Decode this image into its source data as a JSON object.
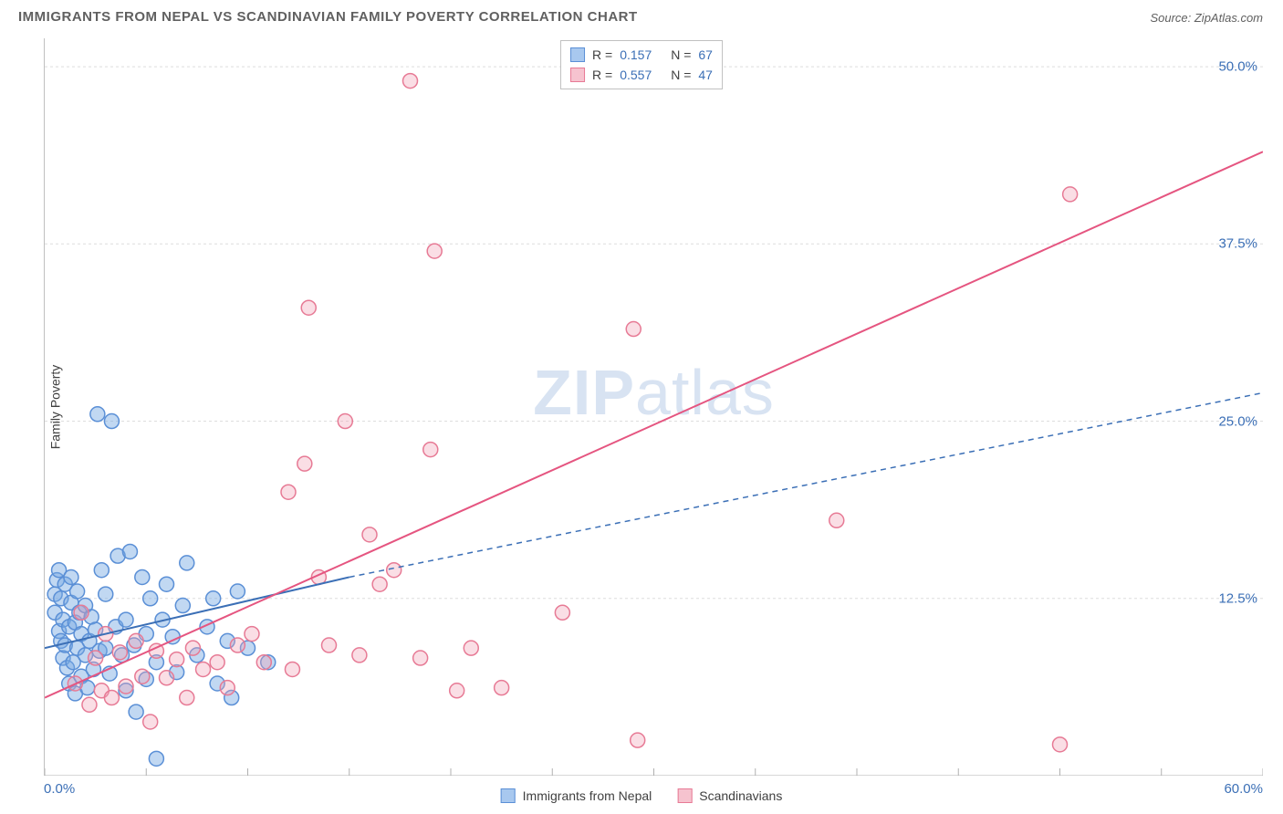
{
  "title": "IMMIGRANTS FROM NEPAL VS SCANDINAVIAN FAMILY POVERTY CORRELATION CHART",
  "source": "Source: ZipAtlas.com",
  "ylabel": "Family Poverty",
  "watermark_a": "ZIP",
  "watermark_b": "atlas",
  "chart": {
    "type": "scatter",
    "background_color": "#ffffff",
    "grid_color": "#dddddd",
    "axis_color": "#b0b0b0",
    "xlim": [
      0,
      60
    ],
    "ylim": [
      0,
      52
    ],
    "xtick_step": 5,
    "yticks": [
      12.5,
      25.0,
      37.5,
      50.0
    ],
    "ytick_labels": [
      "12.5%",
      "25.0%",
      "37.5%",
      "50.0%"
    ],
    "x_min_label": "0.0%",
    "x_max_label": "60.0%",
    "marker_radius": 8,
    "marker_stroke_width": 1.5,
    "label_fontsize": 14,
    "tick_fontsize": 15
  },
  "legend_top": {
    "rows": [
      {
        "swatch_fill": "#a8c8ef",
        "swatch_stroke": "#5a8fd6",
        "r_label": "R =",
        "r_value": "0.157",
        "n_label": "N =",
        "n_value": "67"
      },
      {
        "swatch_fill": "#f6c3cf",
        "swatch_stroke": "#e77a95",
        "r_label": "R =",
        "r_value": "0.557",
        "n_label": "N =",
        "n_value": "47"
      }
    ]
  },
  "legend_bottom": {
    "items": [
      {
        "swatch_fill": "#a8c8ef",
        "swatch_stroke": "#5a8fd6",
        "label": "Immigrants from Nepal"
      },
      {
        "swatch_fill": "#f6c3cf",
        "swatch_stroke": "#e77a95",
        "label": "Scandinavians"
      }
    ]
  },
  "series": [
    {
      "name": "blue",
      "fill": "rgba(118,168,226,0.45)",
      "stroke": "#5a8fd6",
      "trend": {
        "x1": 0,
        "y1": 9.0,
        "x2": 15,
        "y2": 14.0,
        "dash_x1": 15,
        "dash_y1": 14.0,
        "dash_x2": 60,
        "dash_y2": 27.0,
        "color": "#3b6fb6",
        "width": 2
      },
      "points": [
        [
          0.5,
          11.5
        ],
        [
          0.5,
          12.8
        ],
        [
          0.6,
          13.8
        ],
        [
          0.7,
          14.5
        ],
        [
          0.7,
          10.2
        ],
        [
          0.8,
          9.5
        ],
        [
          0.8,
          12.5
        ],
        [
          0.9,
          8.3
        ],
        [
          0.9,
          11.0
        ],
        [
          1.0,
          13.5
        ],
        [
          1.0,
          9.2
        ],
        [
          1.1,
          7.6
        ],
        [
          1.2,
          10.5
        ],
        [
          1.2,
          6.5
        ],
        [
          1.3,
          12.2
        ],
        [
          1.3,
          14.0
        ],
        [
          1.4,
          8.0
        ],
        [
          1.5,
          10.8
        ],
        [
          1.5,
          5.8
        ],
        [
          1.6,
          13.0
        ],
        [
          1.6,
          9.0
        ],
        [
          1.7,
          11.5
        ],
        [
          1.8,
          7.0
        ],
        [
          1.8,
          10.0
        ],
        [
          2.0,
          8.5
        ],
        [
          2.0,
          12.0
        ],
        [
          2.1,
          6.2
        ],
        [
          2.2,
          9.5
        ],
        [
          2.3,
          11.2
        ],
        [
          2.4,
          7.5
        ],
        [
          2.5,
          10.3
        ],
        [
          2.6,
          25.5
        ],
        [
          2.7,
          8.8
        ],
        [
          2.8,
          14.5
        ],
        [
          3.0,
          9.0
        ],
        [
          3.0,
          12.8
        ],
        [
          3.2,
          7.2
        ],
        [
          3.3,
          25.0
        ],
        [
          3.5,
          10.5
        ],
        [
          3.6,
          15.5
        ],
        [
          3.8,
          8.5
        ],
        [
          4.0,
          11.0
        ],
        [
          4.0,
          6.0
        ],
        [
          4.2,
          15.8
        ],
        [
          4.4,
          9.2
        ],
        [
          4.5,
          4.5
        ],
        [
          4.8,
          14.0
        ],
        [
          5.0,
          10.0
        ],
        [
          5.0,
          6.8
        ],
        [
          5.2,
          12.5
        ],
        [
          5.5,
          8.0
        ],
        [
          5.5,
          1.2
        ],
        [
          5.8,
          11.0
        ],
        [
          6.0,
          13.5
        ],
        [
          6.3,
          9.8
        ],
        [
          6.5,
          7.3
        ],
        [
          6.8,
          12.0
        ],
        [
          7.0,
          15.0
        ],
        [
          7.5,
          8.5
        ],
        [
          8.0,
          10.5
        ],
        [
          8.3,
          12.5
        ],
        [
          8.5,
          6.5
        ],
        [
          9.0,
          9.5
        ],
        [
          9.2,
          5.5
        ],
        [
          9.5,
          13.0
        ],
        [
          10.0,
          9.0
        ],
        [
          11.0,
          8.0
        ]
      ]
    },
    {
      "name": "pink",
      "fill": "rgba(240,160,180,0.35)",
      "stroke": "#e77a95",
      "trend": {
        "x1": 0,
        "y1": 5.5,
        "x2": 60,
        "y2": 44.0,
        "color": "#e55580",
        "width": 2
      },
      "points": [
        [
          1.5,
          6.5
        ],
        [
          1.8,
          11.5
        ],
        [
          2.2,
          5.0
        ],
        [
          2.5,
          8.3
        ],
        [
          2.8,
          6.0
        ],
        [
          3.0,
          10.0
        ],
        [
          3.3,
          5.5
        ],
        [
          3.7,
          8.7
        ],
        [
          4.0,
          6.3
        ],
        [
          4.5,
          9.5
        ],
        [
          4.8,
          7.0
        ],
        [
          5.2,
          3.8
        ],
        [
          5.5,
          8.8
        ],
        [
          6.0,
          6.9
        ],
        [
          6.5,
          8.2
        ],
        [
          7.0,
          5.5
        ],
        [
          7.3,
          9.0
        ],
        [
          7.8,
          7.5
        ],
        [
          8.5,
          8.0
        ],
        [
          9.0,
          6.2
        ],
        [
          9.5,
          9.2
        ],
        [
          10.2,
          10.0
        ],
        [
          10.8,
          8.0
        ],
        [
          12.0,
          20.0
        ],
        [
          12.2,
          7.5
        ],
        [
          12.8,
          22.0
        ],
        [
          13.0,
          33.0
        ],
        [
          13.5,
          14.0
        ],
        [
          14.0,
          9.2
        ],
        [
          14.8,
          25.0
        ],
        [
          15.5,
          8.5
        ],
        [
          16.0,
          17.0
        ],
        [
          16.5,
          13.5
        ],
        [
          17.2,
          14.5
        ],
        [
          18.0,
          49.0
        ],
        [
          18.5,
          8.3
        ],
        [
          19.0,
          23.0
        ],
        [
          19.2,
          37.0
        ],
        [
          20.3,
          6.0
        ],
        [
          21.0,
          9.0
        ],
        [
          22.5,
          6.2
        ],
        [
          25.5,
          11.5
        ],
        [
          29.0,
          31.5
        ],
        [
          29.2,
          2.5
        ],
        [
          39.0,
          18.0
        ],
        [
          50.0,
          2.2
        ],
        [
          50.5,
          41.0
        ]
      ]
    }
  ]
}
